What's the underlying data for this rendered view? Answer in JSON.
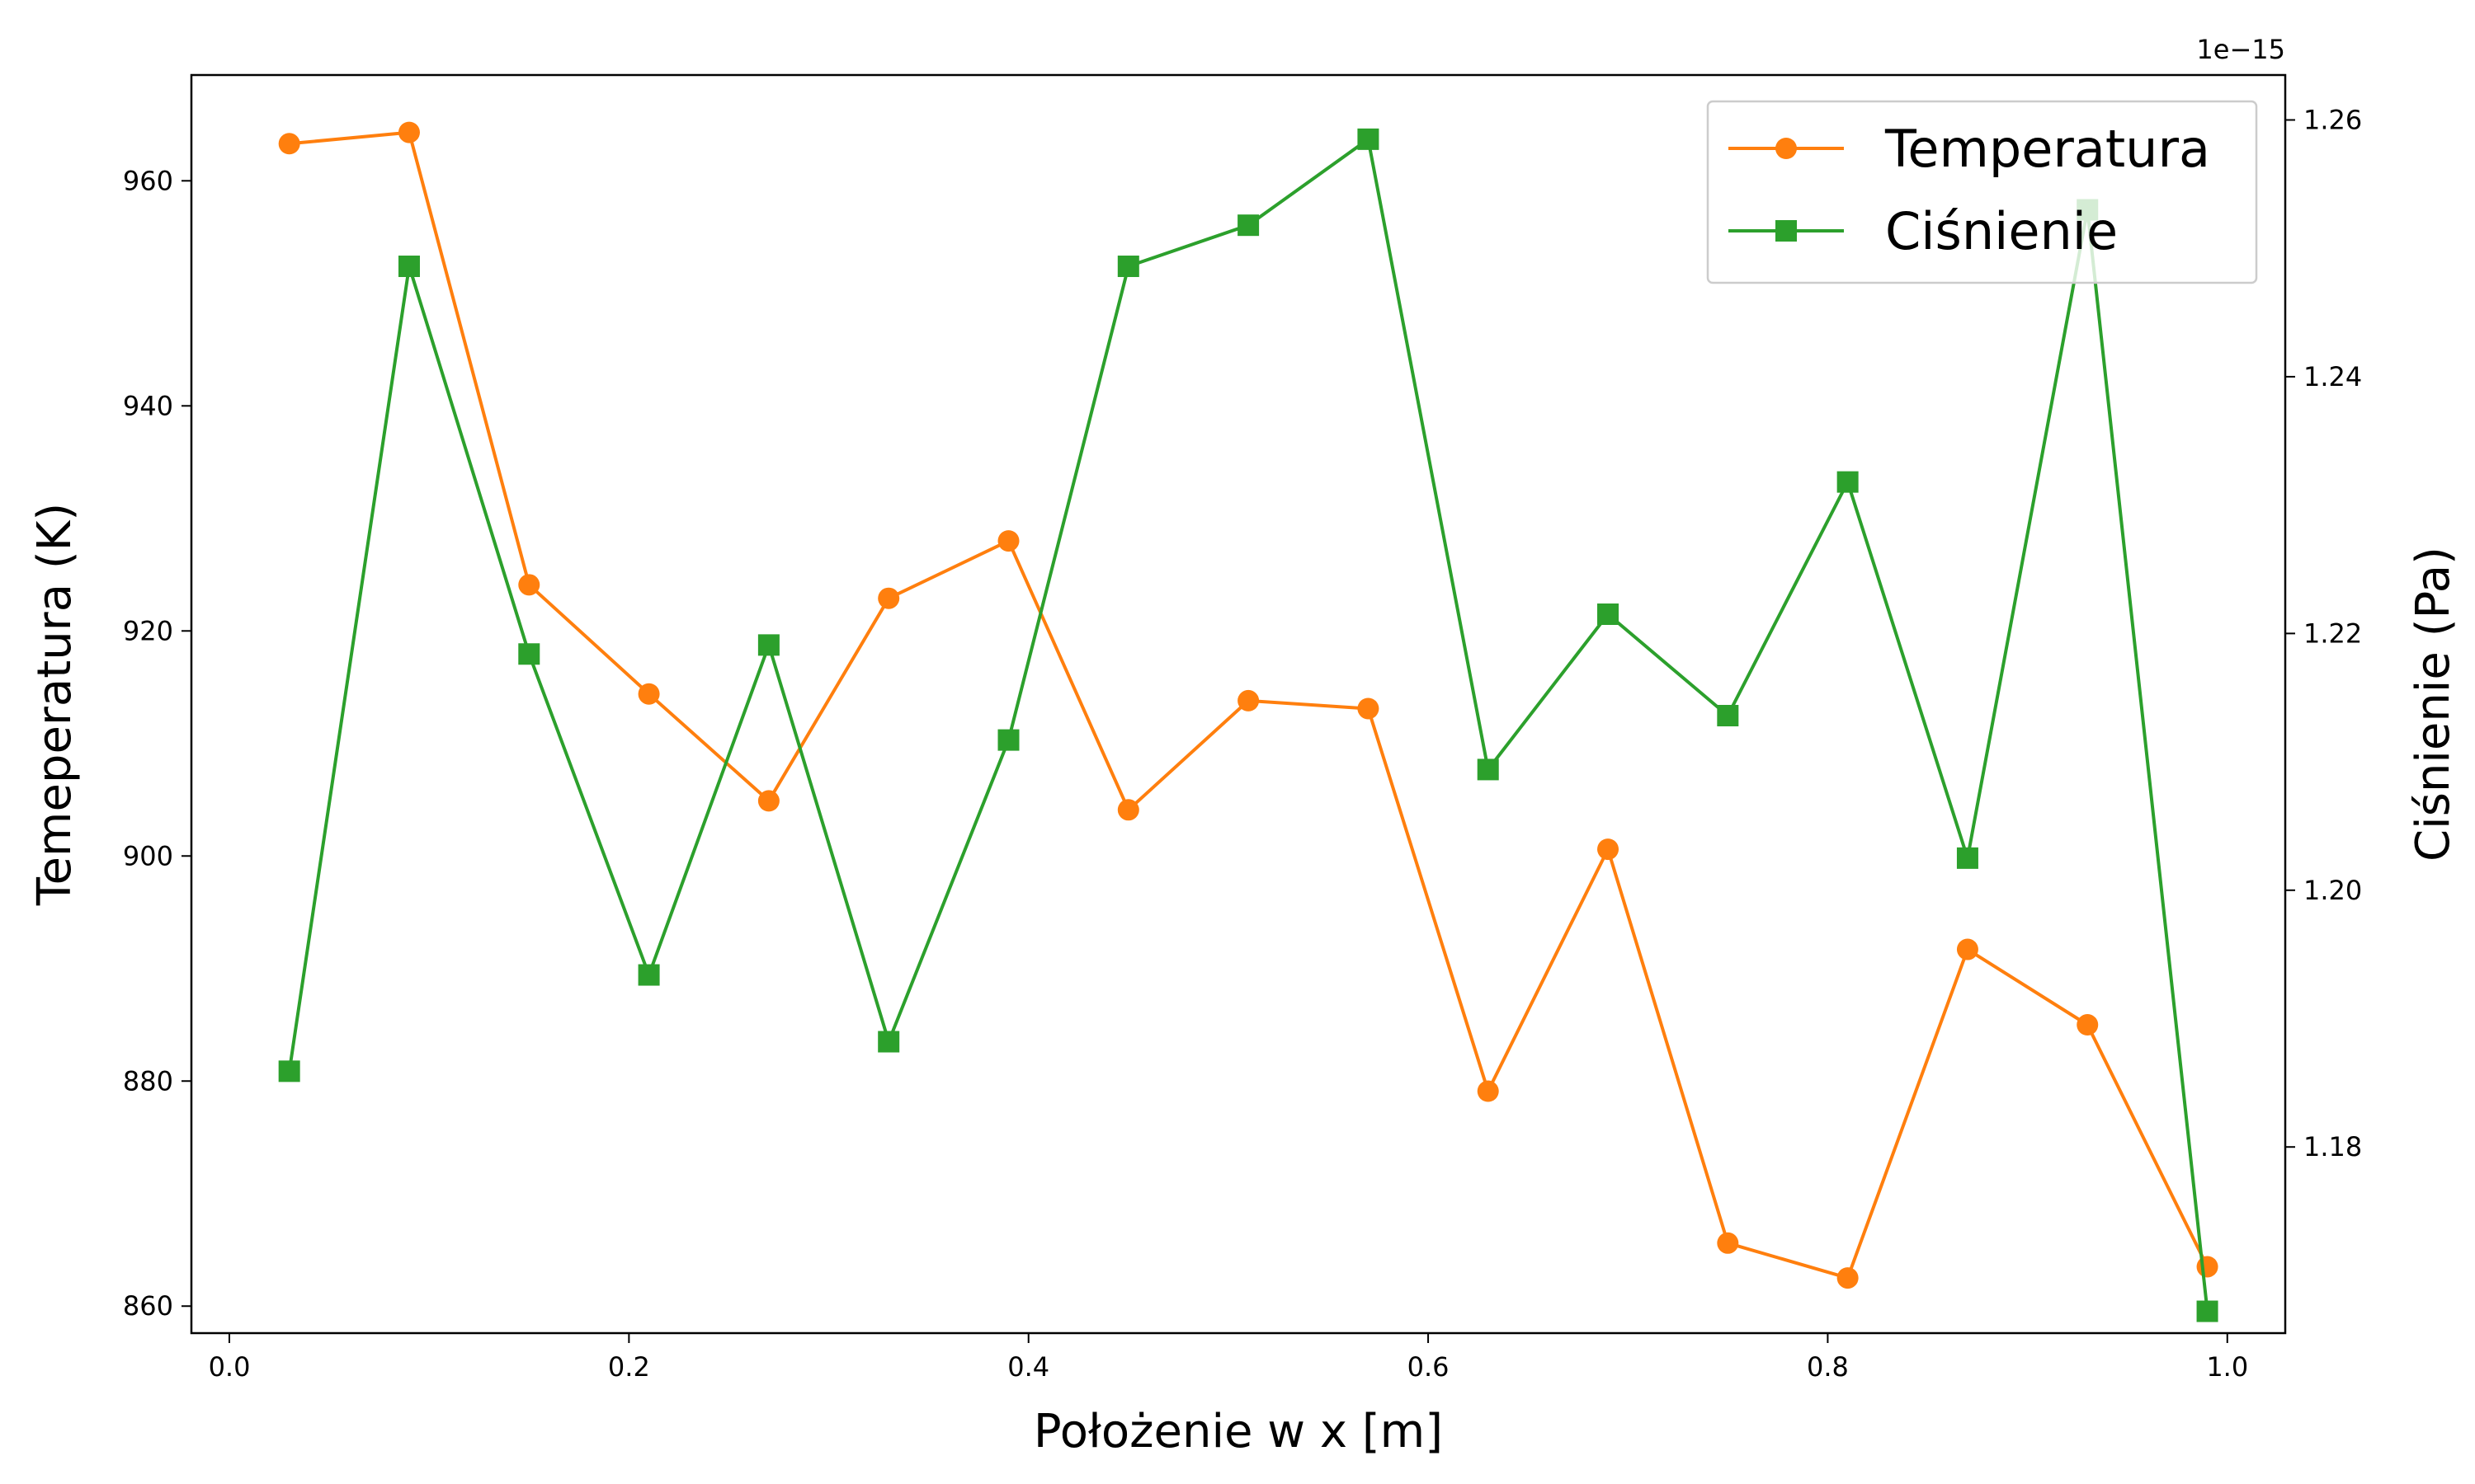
{
  "chart_data": {
    "type": "line",
    "title": "",
    "xlabel": "Położenie w x [m]",
    "ylabel_left": "Temeperatura (K)",
    "ylabel_right": "Ciśnienie (Pa)",
    "right_axis_offset_text": "1e−15",
    "xlim": [
      -0.019,
      1.029
    ],
    "ylim_left": [
      857.6,
      969.4
    ],
    "ylim_right": [
      1.1655,
      1.2635
    ],
    "x_ticks": [
      0.0,
      0.2,
      0.4,
      0.6,
      0.8,
      1.0
    ],
    "x_tick_labels": [
      "0.0",
      "0.2",
      "0.4",
      "0.6",
      "0.8",
      "1.0"
    ],
    "left_ticks": [
      860,
      880,
      900,
      920,
      940,
      960
    ],
    "left_tick_labels": [
      "860",
      "880",
      "900",
      "920",
      "940",
      "960"
    ],
    "right_ticks": [
      1.18,
      1.2,
      1.22,
      1.24,
      1.26
    ],
    "right_tick_labels": [
      "1.18",
      "1.20",
      "1.22",
      "1.24",
      "1.26"
    ],
    "x": [
      0.03,
      0.09,
      0.15,
      0.21,
      0.27,
      0.33,
      0.39,
      0.45,
      0.51,
      0.57,
      0.63,
      0.69,
      0.75,
      0.81,
      0.87,
      0.93,
      0.99
    ],
    "series": [
      {
        "name": "Temperatura",
        "axis": "left",
        "color": "#ff7f0e",
        "marker": "circle",
        "values": [
          963.3,
          964.3,
          924.1,
          914.4,
          904.9,
          922.9,
          928.0,
          904.1,
          913.8,
          913.1,
          879.1,
          900.6,
          865.6,
          862.5,
          891.7,
          885.0,
          863.5
        ]
      },
      {
        "name": "Ciśnienie",
        "axis": "right",
        "color": "#2ca02c",
        "marker": "square",
        "values": [
          1.1859,
          1.2486,
          1.2184,
          1.1934,
          1.2191,
          1.1882,
          1.2117,
          1.2486,
          1.2518,
          1.2585,
          1.2094,
          1.2215,
          1.2136,
          1.2318,
          1.2025,
          1.253,
          1.1672
        ]
      }
    ],
    "legend": {
      "position": "upper-right"
    },
    "grid": false
  }
}
